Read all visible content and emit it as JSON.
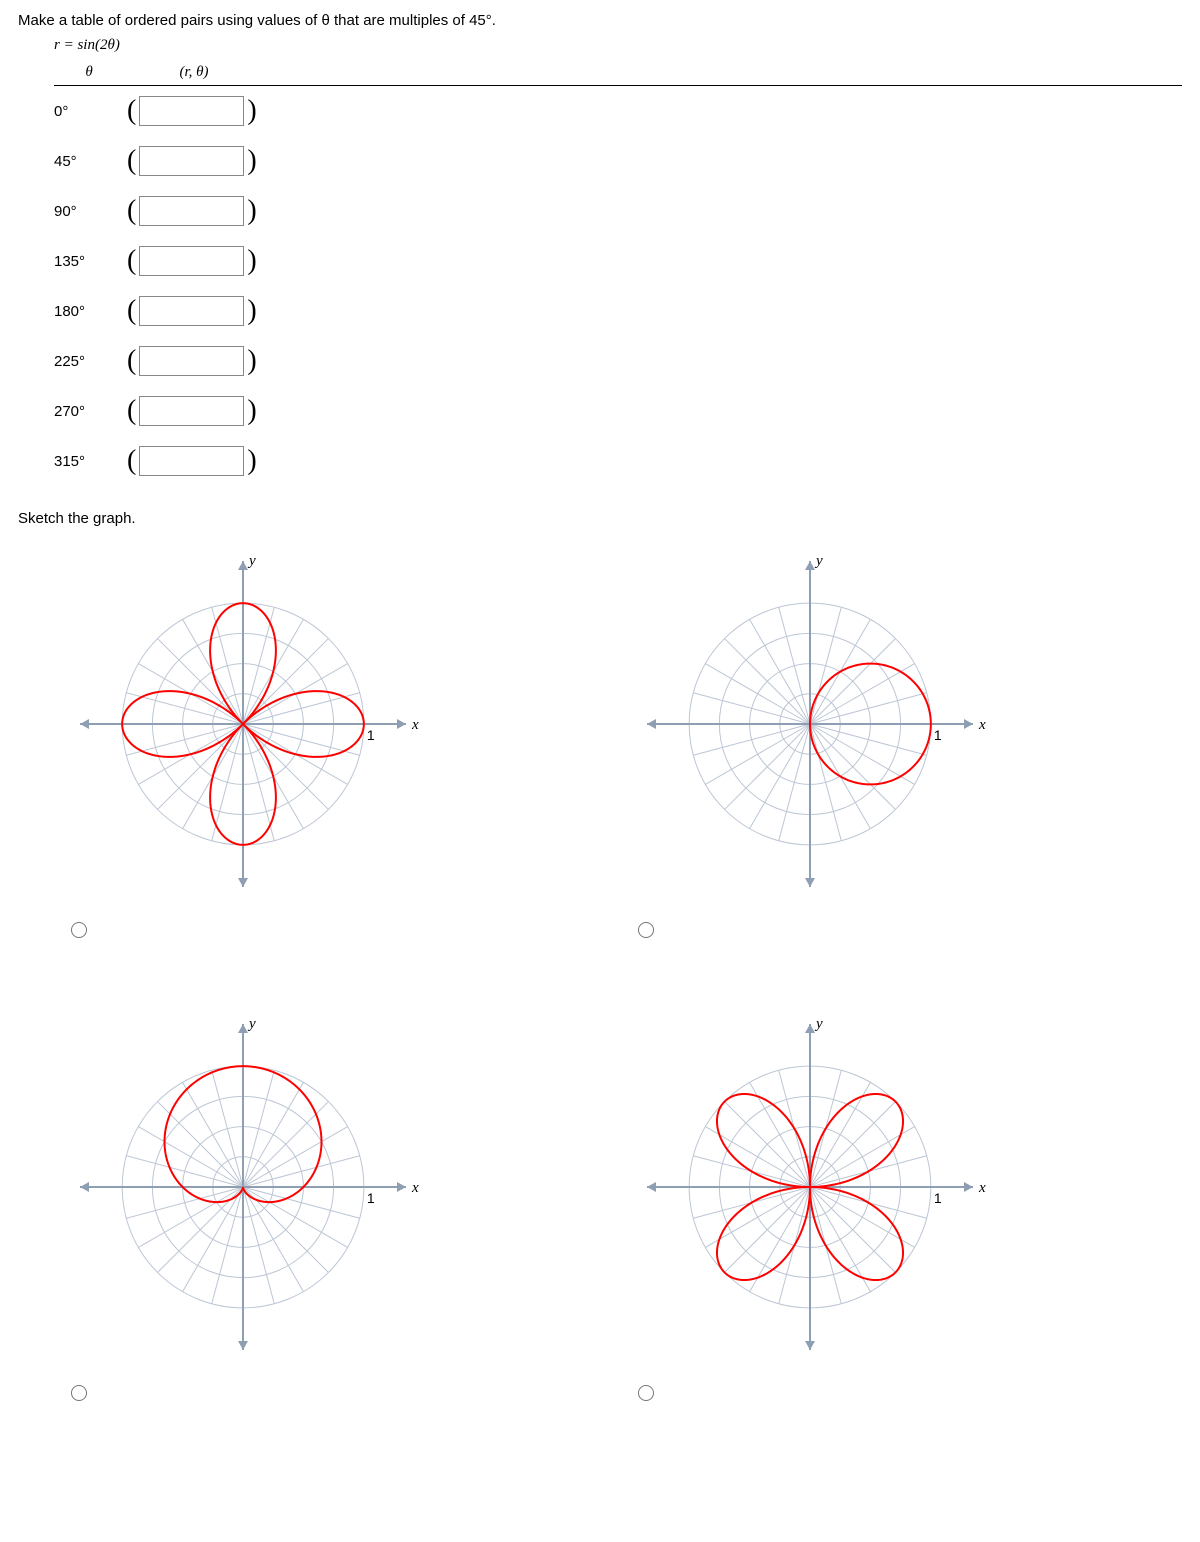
{
  "prompt": "Make a table of ordered pairs using values of θ that are multiples of 45°.",
  "equation": "r = sin(2θ)",
  "table": {
    "header_theta": "θ",
    "header_pair": "(r, θ)",
    "rows": [
      {
        "theta": "0°",
        "value": ""
      },
      {
        "theta": "45°",
        "value": ""
      },
      {
        "theta": "90°",
        "value": ""
      },
      {
        "theta": "135°",
        "value": ""
      },
      {
        "theta": "180°",
        "value": ""
      },
      {
        "theta": "225°",
        "value": ""
      },
      {
        "theta": "270°",
        "value": ""
      },
      {
        "theta": "315°",
        "value": ""
      }
    ]
  },
  "sketch_prompt": "Sketch the graph.",
  "graph": {
    "axis_color": "#8e9fb3",
    "grid_color": "#bcc6d4",
    "curve_color": "#ff0000",
    "curve_width": 2,
    "grid_width": 1,
    "axis_width": 2,
    "label_font": "italic 15px Georgia",
    "tick_label": "1",
    "x_label": "x",
    "y_label": "y",
    "view_half": 1.2,
    "svg_size": 350,
    "n_circles": 4,
    "n_spokes": 24,
    "options": [
      {
        "type": "sin2t_rose_axis",
        "selected": false
      },
      {
        "type": "circle_right",
        "selected": false
      },
      {
        "type": "cardioid_up",
        "selected": false
      },
      {
        "type": "sin2t_rose_diag",
        "selected": false
      }
    ]
  }
}
